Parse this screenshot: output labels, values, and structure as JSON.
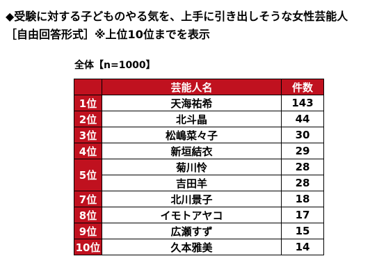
{
  "title_line1": "◆受験に対する子どものやる気を、上手に引き出しそうな女性芸能人",
  "title_line2": "［自由回答形式］※上位10位までを表示",
  "subtitle": "全体【n=1000】",
  "chart_data": {
    "type": "table",
    "columns": [
      "芸能人名",
      "件数"
    ],
    "rows": [
      {
        "rank": "1位",
        "name": "天海祐希",
        "count": "143"
      },
      {
        "rank": "2位",
        "name": "北斗晶",
        "count": "44"
      },
      {
        "rank": "3位",
        "name": "松嶋菜々子",
        "count": "30"
      },
      {
        "rank": "4位",
        "name": "新垣結衣",
        "count": "29"
      },
      {
        "rank": "5位",
        "name": "菊川怜",
        "count": "28"
      },
      {
        "rank": "5位",
        "name": "吉田羊",
        "count": "28"
      },
      {
        "rank": "7位",
        "name": "北川景子",
        "count": "18"
      },
      {
        "rank": "8位",
        "name": "イモトアヤコ",
        "count": "17"
      },
      {
        "rank": "9位",
        "name": "広瀬すず",
        "count": "15"
      },
      {
        "rank": "10位",
        "name": "久本雅美",
        "count": "14"
      }
    ]
  },
  "colors": {
    "header_bg": "#c0111f",
    "header_text": "#ffffff"
  }
}
